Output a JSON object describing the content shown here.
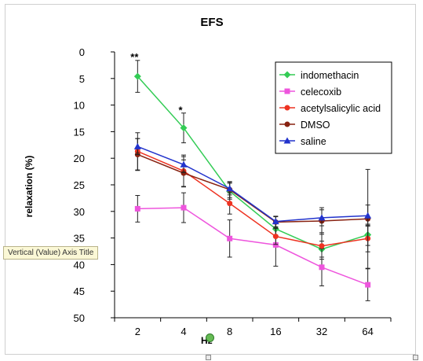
{
  "chart_data": {
    "type": "line",
    "title": "EFS",
    "ylabel": "relaxation (%)",
    "xlabel": "Hz",
    "categories": [
      "2",
      "4",
      "8",
      "16",
      "32",
      "64"
    ],
    "y_ticks": [
      "0",
      "5",
      "10",
      "15",
      "20",
      "25",
      "30",
      "35",
      "40",
      "45",
      "50"
    ],
    "ylim": [
      0,
      50
    ],
    "y_inverted": true,
    "legend_position": "top-right",
    "series": [
      {
        "name": "indomethacin",
        "color": "#33cc55",
        "marker": "diamond",
        "values": [
          4.6,
          14.3,
          26.2,
          33.3,
          37.1,
          34.4
        ],
        "errors": [
          3.0,
          2.8,
          1.5,
          1.2,
          1.5,
          2.0
        ]
      },
      {
        "name": "celecoxib",
        "color": "#ee55dd",
        "marker": "square",
        "values": [
          29.5,
          29.3,
          35.1,
          36.3,
          40.5,
          43.8
        ],
        "errors": [
          2.5,
          2.8,
          3.5,
          4.0,
          3.5,
          3.0
        ]
      },
      {
        "name": "acetylsalicylic acid",
        "color": "#ee3322",
        "marker": "circle",
        "values": [
          18.7,
          22.4,
          28.5,
          34.7,
          36.5,
          35.1
        ],
        "errors": [
          3.5,
          3.0,
          2.0,
          1.5,
          2.5,
          2.5
        ]
      },
      {
        "name": "DMSO",
        "color": "#882211",
        "marker": "circle",
        "values": [
          19.3,
          22.8,
          25.9,
          32.0,
          31.8,
          31.4
        ],
        "errors": [
          3.0,
          2.5,
          1.5,
          1.0,
          2.5,
          9.3
        ]
      },
      {
        "name": "saline",
        "color": "#2233cc",
        "marker": "triangle",
        "values": [
          17.8,
          21.2,
          25.7,
          31.9,
          31.2,
          30.8
        ],
        "errors": [
          1.5,
          1.5,
          1.2,
          1.0,
          1.5,
          2.0
        ]
      }
    ],
    "annotations": [
      {
        "text": "**",
        "category": "2",
        "y": 1
      },
      {
        "text": "*",
        "category": "4",
        "y": 11
      }
    ]
  },
  "tooltip_text": "Vertical (Value) Axis Title",
  "colors": {
    "axis": "#000000",
    "frame": "#cfcfcf",
    "tooltip_bg": "#fbf8d6"
  },
  "icons": {
    "rotate_handle": "rotate-handle-icon",
    "resize_handle": "resize-handle-icon"
  }
}
